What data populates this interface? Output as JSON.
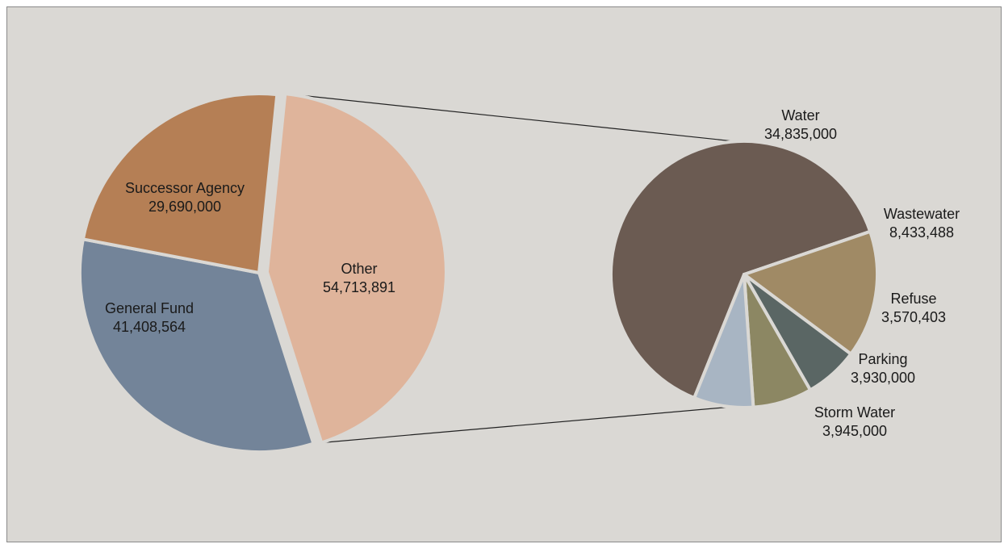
{
  "chart_data": [
    {
      "type": "pie",
      "categories": [
        "Other",
        "General Fund",
        "Successor Agency"
      ],
      "values": [
        54713891,
        41408564,
        29690000
      ],
      "value_labels": [
        "54,713,891",
        "41,408,564",
        "29,690,000"
      ],
      "colors": [
        "#dfb49b",
        "#738499",
        "#b57f55"
      ]
    },
    {
      "type": "pie",
      "categories": [
        "Water",
        "Wastewater",
        "Refuse",
        "Parking",
        "Storm Water"
      ],
      "values": [
        34835000,
        8433488,
        3570403,
        3930000,
        3945000
      ],
      "value_labels": [
        "34,835,000",
        "8,433,488",
        "3,570,403",
        "3,930,000",
        "3,945,000"
      ],
      "colors": [
        "#6b5b52",
        "#a08a65",
        "#5a6664",
        "#8c8763",
        "#a8b5c3"
      ]
    }
  ],
  "colors": {
    "background": "#dad8d4",
    "slice_border": "#dad8d4",
    "connector": "#222222"
  }
}
